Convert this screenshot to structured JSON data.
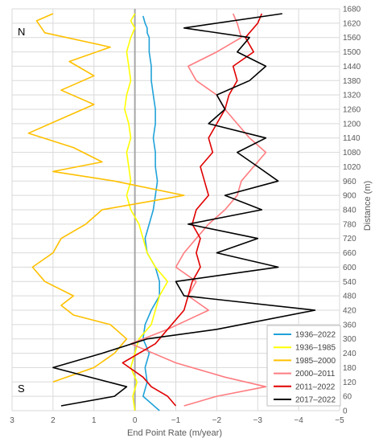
{
  "chart_data": {
    "type": "line",
    "orientation": "vertical-profile",
    "xlabel": "End Point Rate (m/year)",
    "ylabel": "Distance (m)",
    "xlim": [
      3,
      -5
    ],
    "ylim": [
      0,
      1680
    ],
    "x_ticks": [
      3,
      2,
      1,
      0,
      -1,
      -2,
      -3,
      -4,
      -5
    ],
    "y_ticks": [
      0,
      60,
      120,
      180,
      240,
      300,
      360,
      420,
      480,
      540,
      600,
      660,
      720,
      780,
      840,
      900,
      960,
      1020,
      1080,
      1140,
      1200,
      1260,
      1320,
      1380,
      1440,
      1500,
      1560,
      1620,
      1680
    ],
    "grid": true,
    "legend_position": "bottom-right",
    "annotations": [
      "N",
      "S"
    ],
    "series": [
      {
        "name": "1936–2022",
        "color": "#1fa2d9",
        "x": [
          -0.6,
          -0.2,
          -0.3,
          -0.25,
          -0.35,
          -0.2,
          -0.25,
          -0.4,
          -0.6,
          -0.6,
          -0.5,
          -0.3,
          -0.25,
          -0.35,
          -0.45,
          -0.5,
          -0.55,
          -0.5,
          -0.5,
          -0.45,
          -0.5,
          -0.5,
          -0.45,
          -0.4,
          -0.4,
          -0.35,
          -0.35,
          -0.3,
          -0.3,
          -0.25,
          -0.2
        ],
        "y": [
          0,
          60,
          120,
          180,
          240,
          300,
          360,
          420,
          480,
          540,
          600,
          660,
          720,
          780,
          840,
          900,
          960,
          1020,
          1080,
          1140,
          1200,
          1260,
          1320,
          1380,
          1440,
          1500,
          1560,
          1580,
          1600,
          1620,
          1650
        ]
      },
      {
        "name": "1936–1985",
        "color": "#ffff00",
        "x": [
          0,
          0.05,
          -0.05,
          0.1,
          0.0,
          -0.1,
          -0.4,
          -0.5,
          -0.6,
          -0.8,
          -0.5,
          -0.3,
          -0.2,
          -0.1,
          0.1,
          0.2,
          0.1,
          0.15,
          0.2,
          0.1,
          0.15,
          0.25,
          0.2,
          0.1,
          0.15,
          0.2,
          0.1,
          0.0,
          0.1,
          0.0
        ],
        "y": [
          0,
          60,
          120,
          180,
          240,
          300,
          360,
          420,
          480,
          540,
          600,
          660,
          720,
          780,
          840,
          900,
          960,
          1020,
          1080,
          1140,
          1200,
          1260,
          1320,
          1380,
          1440,
          1500,
          1560,
          1600,
          1630,
          1660
        ]
      },
      {
        "name": "1985–2000",
        "color": "#ffc000",
        "x": [
          2.0,
          1.0,
          0.5,
          0.2,
          0.6,
          1.5,
          1.8,
          1.5,
          2.2,
          2.5,
          2.0,
          1.8,
          1.2,
          0.8,
          -1.2,
          0.5,
          2.0,
          0.8,
          1.5,
          2.6,
          1.8,
          1.0,
          1.8,
          1.0,
          1.6,
          0.6,
          2.2,
          2.4,
          2.0
        ],
        "y": [
          120,
          180,
          240,
          300,
          360,
          400,
          440,
          480,
          540,
          600,
          660,
          720,
          780,
          840,
          900,
          960,
          1000,
          1040,
          1100,
          1160,
          1220,
          1280,
          1340,
          1400,
          1460,
          1520,
          1580,
          1630,
          1660
        ]
      },
      {
        "name": "2000–2011",
        "color": "#ff7c80",
        "x": [
          -1.2,
          -2.0,
          -3.2,
          -2.2,
          -1.0,
          0.1,
          -0.8,
          -1.8,
          -1.3,
          -1.5,
          -1.0,
          -1.2,
          -1.5,
          -1.8,
          -2.2,
          -2.5,
          -2.6,
          -2.9,
          -3.2,
          -2.8,
          -2.5,
          -2.2,
          -2.0,
          -1.5,
          -1.3,
          -2.0,
          -2.6,
          -2.5,
          -2.4
        ],
        "y": [
          20,
          60,
          100,
          140,
          200,
          280,
          340,
          420,
          480,
          540,
          600,
          660,
          720,
          780,
          840,
          900,
          960,
          1020,
          1080,
          1140,
          1200,
          1260,
          1320,
          1380,
          1440,
          1500,
          1560,
          1620,
          1660
        ]
      },
      {
        "name": "2011–2022",
        "color": "#e00000",
        "x": [
          -1.0,
          -0.8,
          -0.4,
          -0.2,
          0.3,
          -0.5,
          -0.8,
          -1.2,
          -1.3,
          -1.4,
          -1.6,
          -1.5,
          -1.6,
          -1.4,
          -1.5,
          -1.8,
          -1.7,
          -1.6,
          -1.9,
          -1.8,
          -2.0,
          -2.2,
          -2.3,
          -2.5,
          -2.4,
          -2.9,
          -2.7,
          -3.0,
          -3.1
        ],
        "y": [
          20,
          60,
          100,
          140,
          200,
          280,
          340,
          420,
          480,
          540,
          600,
          660,
          720,
          780,
          840,
          900,
          960,
          1020,
          1080,
          1140,
          1200,
          1260,
          1320,
          1380,
          1440,
          1500,
          1560,
          1620,
          1660
        ]
      },
      {
        "name": "2017–2022",
        "color": "#000000",
        "x": [
          1.8,
          0.5,
          0.2,
          2.0,
          0.8,
          -0.3,
          -2.0,
          -4.4,
          -1.2,
          -1.0,
          -3.5,
          -2.0,
          -3.0,
          -1.3,
          -3.1,
          -2.2,
          -3.5,
          -3.0,
          -2.5,
          -3.2,
          -1.8,
          -2.2,
          -2.0,
          -2.8,
          -3.2,
          -2.5,
          -2.8,
          -1.2,
          -3.6
        ],
        "y": [
          20,
          60,
          100,
          180,
          240,
          300,
          340,
          420,
          480,
          540,
          600,
          660,
          720,
          780,
          840,
          900,
          960,
          1020,
          1080,
          1140,
          1200,
          1260,
          1320,
          1380,
          1440,
          1500,
          1560,
          1600,
          1660
        ]
      }
    ]
  }
}
